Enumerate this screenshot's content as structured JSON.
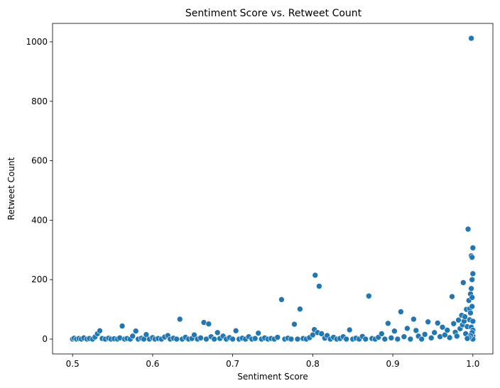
{
  "chart_data": {
    "type": "scatter",
    "title": "Sentiment Score vs. Retweet Count",
    "xlabel": "Sentiment Score",
    "ylabel": "Retweet Count",
    "xlim": [
      0.475,
      1.025
    ],
    "ylim": [
      -50,
      1062
    ],
    "xticks": [
      0.5,
      0.6,
      0.7,
      0.8,
      0.9,
      1.0
    ],
    "xtick_labels": [
      "0.5",
      "0.6",
      "0.7",
      "0.8",
      "0.9",
      "1.0"
    ],
    "yticks": [
      0,
      200,
      400,
      600,
      800,
      1000
    ],
    "ytick_labels": [
      "0",
      "200",
      "400",
      "600",
      "800",
      "1000"
    ],
    "grid": false,
    "color": "#1f77b4",
    "points": [
      [
        0.5,
        0
      ],
      [
        0.502,
        3
      ],
      [
        0.505,
        0
      ],
      [
        0.508,
        2
      ],
      [
        0.511,
        0
      ],
      [
        0.514,
        4
      ],
      [
        0.518,
        0
      ],
      [
        0.521,
        2
      ],
      [
        0.525,
        0
      ],
      [
        0.528,
        7
      ],
      [
        0.531,
        18
      ],
      [
        0.534,
        28
      ],
      [
        0.537,
        2
      ],
      [
        0.541,
        0
      ],
      [
        0.545,
        3
      ],
      [
        0.548,
        0
      ],
      [
        0.552,
        1
      ],
      [
        0.556,
        0
      ],
      [
        0.559,
        4
      ],
      [
        0.562,
        44
      ],
      [
        0.565,
        0
      ],
      [
        0.568,
        2
      ],
      [
        0.572,
        0
      ],
      [
        0.575,
        10
      ],
      [
        0.579,
        27
      ],
      [
        0.582,
        0
      ],
      [
        0.586,
        3
      ],
      [
        0.589,
        0
      ],
      [
        0.592,
        15
      ],
      [
        0.596,
        0
      ],
      [
        0.6,
        5
      ],
      [
        0.603,
        0
      ],
      [
        0.607,
        2
      ],
      [
        0.611,
        0
      ],
      [
        0.615,
        7
      ],
      [
        0.619,
        12
      ],
      [
        0.622,
        0
      ],
      [
        0.626,
        3
      ],
      [
        0.63,
        0
      ],
      [
        0.634,
        67
      ],
      [
        0.637,
        0
      ],
      [
        0.641,
        6
      ],
      [
        0.645,
        0
      ],
      [
        0.649,
        2
      ],
      [
        0.652,
        14
      ],
      [
        0.656,
        0
      ],
      [
        0.66,
        4
      ],
      [
        0.664,
        56
      ],
      [
        0.667,
        0
      ],
      [
        0.67,
        51
      ],
      [
        0.673,
        8
      ],
      [
        0.677,
        0
      ],
      [
        0.681,
        22
      ],
      [
        0.684,
        2
      ],
      [
        0.688,
        10
      ],
      [
        0.692,
        0
      ],
      [
        0.696,
        5
      ],
      [
        0.7,
        0
      ],
      [
        0.704,
        28
      ],
      [
        0.708,
        0
      ],
      [
        0.712,
        3
      ],
      [
        0.716,
        0
      ],
      [
        0.72,
        8
      ],
      [
        0.724,
        0
      ],
      [
        0.728,
        2
      ],
      [
        0.732,
        20
      ],
      [
        0.736,
        0
      ],
      [
        0.74,
        4
      ],
      [
        0.744,
        0
      ],
      [
        0.748,
        2
      ],
      [
        0.752,
        0
      ],
      [
        0.756,
        6
      ],
      [
        0.761,
        133
      ],
      [
        0.765,
        0
      ],
      [
        0.769,
        3
      ],
      [
        0.773,
        0
      ],
      [
        0.777,
        50
      ],
      [
        0.781,
        0
      ],
      [
        0.784,
        101
      ],
      [
        0.788,
        2
      ],
      [
        0.792,
        0
      ],
      [
        0.796,
        5
      ],
      [
        0.8,
        14
      ],
      [
        0.802,
        32
      ],
      [
        0.803,
        215
      ],
      [
        0.806,
        22
      ],
      [
        0.808,
        178
      ],
      [
        0.811,
        18
      ],
      [
        0.815,
        3
      ],
      [
        0.818,
        12
      ],
      [
        0.822,
        0
      ],
      [
        0.826,
        6
      ],
      [
        0.83,
        0
      ],
      [
        0.834,
        2
      ],
      [
        0.838,
        8
      ],
      [
        0.842,
        0
      ],
      [
        0.846,
        31
      ],
      [
        0.85,
        0
      ],
      [
        0.854,
        3
      ],
      [
        0.858,
        0
      ],
      [
        0.862,
        9
      ],
      [
        0.866,
        0
      ],
      [
        0.87,
        145
      ],
      [
        0.874,
        2
      ],
      [
        0.878,
        0
      ],
      [
        0.882,
        6
      ],
      [
        0.886,
        18
      ],
      [
        0.89,
        0
      ],
      [
        0.894,
        53
      ],
      [
        0.898,
        4
      ],
      [
        0.902,
        27
      ],
      [
        0.906,
        0
      ],
      [
        0.91,
        92
      ],
      [
        0.914,
        8
      ],
      [
        0.918,
        36
      ],
      [
        0.922,
        0
      ],
      [
        0.926,
        67
      ],
      [
        0.929,
        29
      ],
      [
        0.932,
        10
      ],
      [
        0.936,
        0
      ],
      [
        0.94,
        16
      ],
      [
        0.944,
        58
      ],
      [
        0.948,
        4
      ],
      [
        0.952,
        22
      ],
      [
        0.956,
        54
      ],
      [
        0.959,
        8
      ],
      [
        0.962,
        40
      ],
      [
        0.965,
        14
      ],
      [
        0.968,
        30
      ],
      [
        0.971,
        5
      ],
      [
        0.974,
        143
      ],
      [
        0.976,
        52
      ],
      [
        0.978,
        23
      ],
      [
        0.98,
        10
      ],
      [
        0.982,
        64
      ],
      [
        0.984,
        35
      ],
      [
        0.986,
        80
      ],
      [
        0.987,
        48
      ],
      [
        0.988,
        190
      ],
      [
        0.989,
        60
      ],
      [
        0.99,
        75
      ],
      [
        0.991,
        18
      ],
      [
        0.992,
        100
      ],
      [
        0.993,
        42
      ],
      [
        0.994,
        370
      ],
      [
        0.995,
        130
      ],
      [
        0.996,
        102
      ],
      [
        0.996,
        65
      ],
      [
        0.997,
        152
      ],
      [
        0.997,
        88
      ],
      [
        0.998,
        280
      ],
      [
        0.998,
        170
      ],
      [
        0.998,
        40
      ],
      [
        0.998,
        1012
      ],
      [
        0.999,
        275
      ],
      [
        0.999,
        200
      ],
      [
        0.999,
        140
      ],
      [
        0.999,
        110
      ],
      [
        1.0,
        307
      ],
      [
        1.0,
        220
      ],
      [
        1.0,
        60
      ],
      [
        1.0,
        30
      ],
      [
        1.0,
        10
      ],
      [
        1.0,
        0
      ],
      [
        0.999,
        22
      ],
      [
        0.997,
        12
      ],
      [
        0.995,
        5
      ],
      [
        0.993,
        2
      ]
    ]
  }
}
